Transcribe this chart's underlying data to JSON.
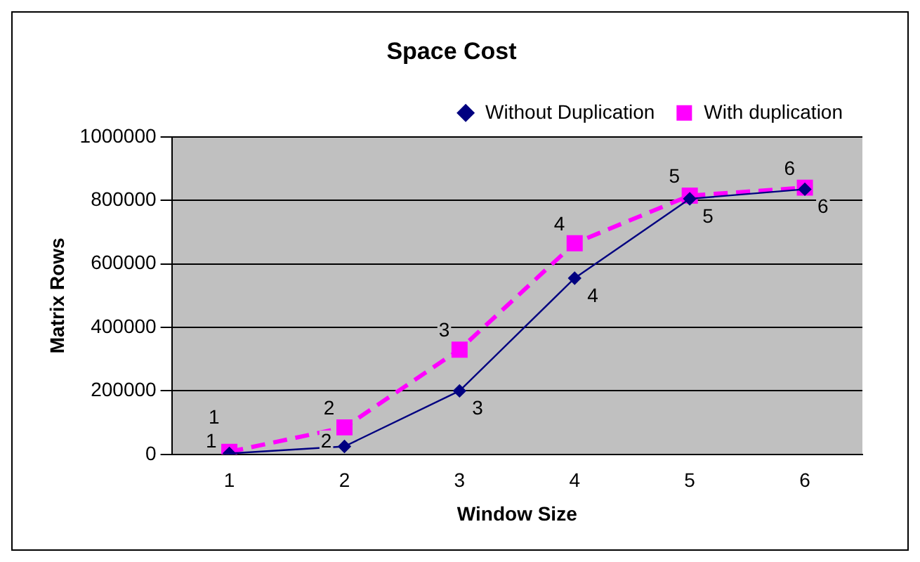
{
  "chart_data": {
    "type": "line",
    "title": "Space Cost",
    "xlabel": "Window Size",
    "ylabel": "Matrix Rows",
    "categories": [
      "1",
      "2",
      "3",
      "4",
      "5",
      "6"
    ],
    "series": [
      {
        "name": "Without Duplication",
        "color": "#000080",
        "marker": "diamond",
        "line_style": "solid",
        "values": [
          3000,
          25000,
          200000,
          555000,
          805000,
          835000
        ]
      },
      {
        "name": "With duplication",
        "color": "#ff00ff",
        "marker": "square",
        "line_style": "dashed",
        "values": [
          8000,
          85000,
          330000,
          665000,
          815000,
          840000
        ]
      }
    ],
    "annotations": [
      {
        "text": "1",
        "x": "1",
        "y": 3000
      },
      {
        "text": "2",
        "x": "2",
        "y": 25000
      },
      {
        "text": "3",
        "x": "3",
        "y": 200000
      },
      {
        "text": "4",
        "x": "4",
        "y": 555000
      },
      {
        "text": "5",
        "x": "5",
        "y": 805000
      },
      {
        "text": "6",
        "x": "6",
        "y": 835000
      },
      {
        "text": "1",
        "x": "1",
        "y": 8000
      },
      {
        "text": "2",
        "x": "2",
        "y": 85000
      },
      {
        "text": "3",
        "x": "3",
        "y": 330000
      },
      {
        "text": "4",
        "x": "4",
        "y": 665000
      },
      {
        "text": "5",
        "x": "5",
        "y": 815000
      },
      {
        "text": "6",
        "x": "6",
        "y": 840000
      }
    ],
    "ylim": [
      0,
      1000000
    ],
    "yticks": [
      0,
      200000,
      400000,
      600000,
      800000,
      1000000
    ],
    "grid": "y",
    "legend": "top"
  }
}
